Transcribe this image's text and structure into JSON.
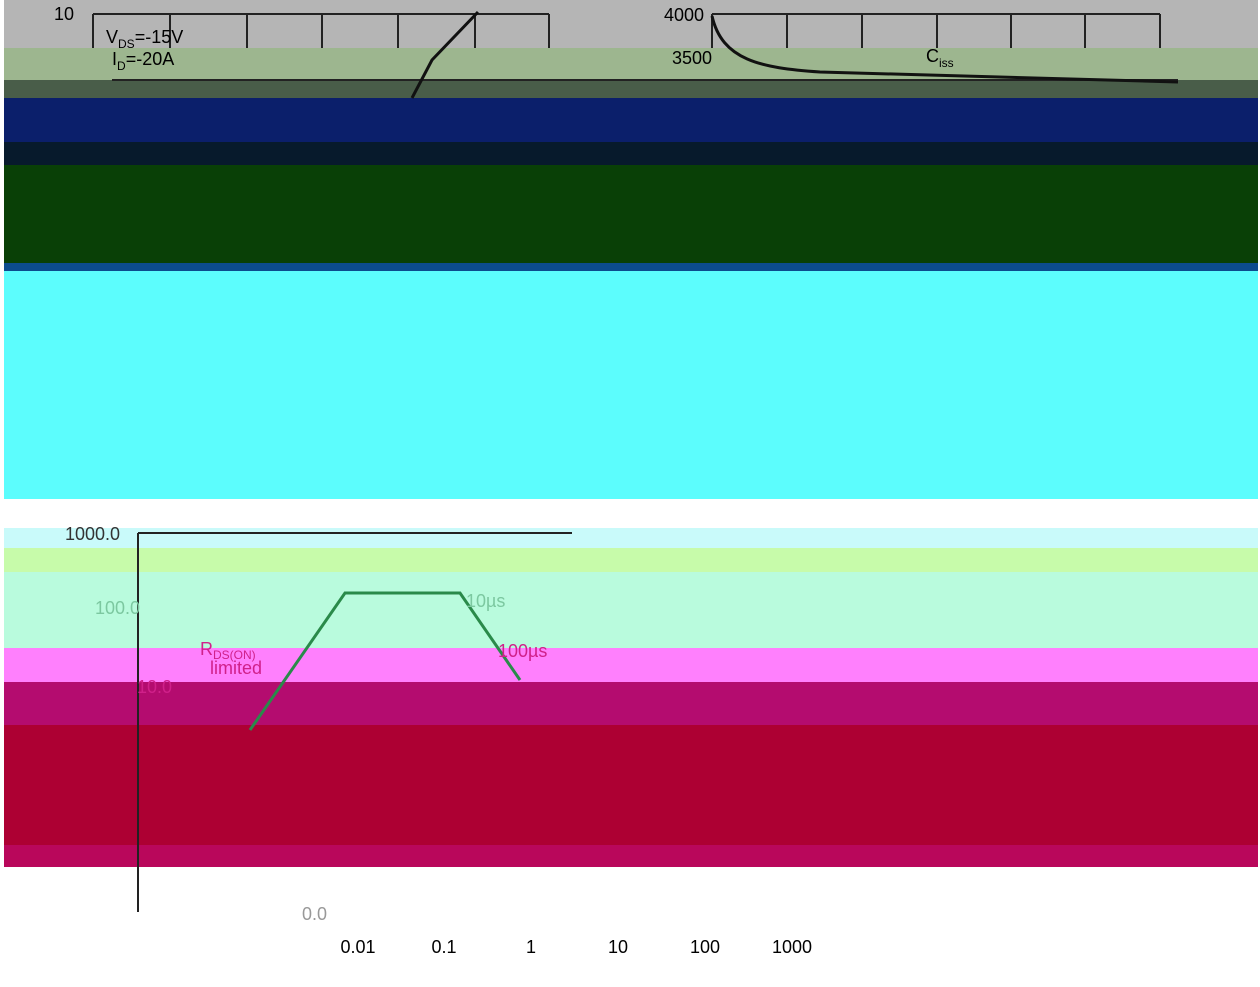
{
  "top_left": {
    "y_max": "10",
    "vds": {
      "symbol": "V",
      "sub": "DS",
      "rest": "=-15V"
    },
    "id": {
      "symbol": "I",
      "sub": "D",
      "rest": "=-20A"
    }
  },
  "top_right": {
    "ticks": [
      "4000",
      "3500"
    ],
    "curve": {
      "symbol": "C",
      "sub": "iss"
    }
  },
  "soa": {
    "y_labels": [
      "1000.0",
      "100.0",
      "10.0"
    ],
    "t10": "10µs",
    "t100": "100µs",
    "rds": {
      "symbol": "R",
      "sub": "DS(ON)",
      "rest": "limited"
    },
    "zero": "0.0"
  },
  "bottom_axis": {
    "labels": [
      "0.01",
      "0.1",
      "1",
      "10",
      "100",
      "1000"
    ]
  }
}
